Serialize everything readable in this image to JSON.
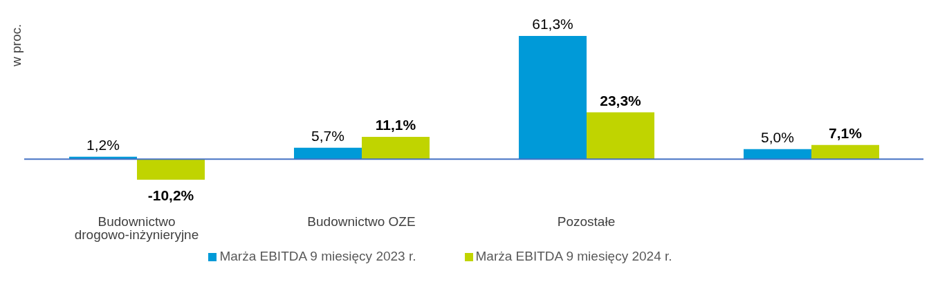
{
  "chart_data": {
    "type": "bar",
    "ylabel": "w proc.",
    "categories": [
      "Budownictwo drogowo-inżynieryjne",
      "Budownictwo OZE",
      "Pozostałe",
      null
    ],
    "series": [
      {
        "name": "Marża EBITDA 9 miesięcy 2023 r.",
        "color": "#009ad8",
        "values": [
          1.2,
          5.7,
          61.3,
          5.0
        ],
        "value_labels": [
          "1,2%",
          "5,7%",
          "61,3%",
          "5,0%"
        ]
      },
      {
        "name": "Marża EBITDA 9 miesięcy 2024 r.",
        "color": "#c0d400",
        "values": [
          -10.2,
          11.1,
          23.3,
          7.1
        ],
        "value_labels": [
          "-10,2%",
          "11,1%",
          "23,3%",
          "7,1%"
        ]
      }
    ],
    "ref_lines": [
      {
        "axis": "y",
        "value": 0,
        "color": "#4472c4"
      }
    ],
    "legend": "bottom",
    "grid": false
  }
}
